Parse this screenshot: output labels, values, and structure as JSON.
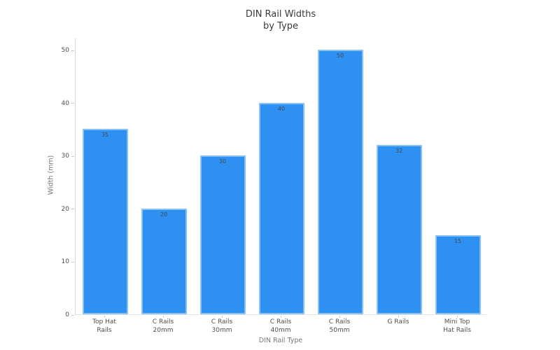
{
  "chart_data": {
    "type": "bar",
    "title": "DIN Rail Widths by Type",
    "title_lines": [
      "DIN Rail Widths",
      "by Type"
    ],
    "xlabel": "DIN Rail Type",
    "ylabel": "Width (mm)",
    "categories": [
      "Top Hat Rails",
      "C Rails 20mm",
      "C Rails 30mm",
      "C Rails 40mm",
      "C Rails 50mm",
      "G Rails",
      "Mini Top Hat Rails"
    ],
    "category_label_lines": [
      [
        "Top Hat",
        "Rails"
      ],
      [
        "C Rails",
        "20mm"
      ],
      [
        "C Rails",
        "30mm"
      ],
      [
        "C Rails",
        "40mm"
      ],
      [
        "C Rails",
        "50mm"
      ],
      [
        "G Rails"
      ],
      [
        "Mini Top",
        "Hat Rails"
      ]
    ],
    "values": [
      35,
      20,
      30,
      40,
      50,
      32,
      15
    ],
    "bar_labels": [
      "35",
      "20",
      "30",
      "40",
      "50",
      "32",
      "15"
    ],
    "ylim": [
      0,
      50
    ],
    "yticks": [
      0,
      10,
      20,
      30,
      40,
      50
    ],
    "grid": false,
    "legend": "none",
    "bar_color": "#2E91F1",
    "bar_border_color": "#8AC2F8",
    "title_color": "#3a3a3a",
    "tick_label_color": "#4d4d4d",
    "axis_title_color": "#787878"
  }
}
